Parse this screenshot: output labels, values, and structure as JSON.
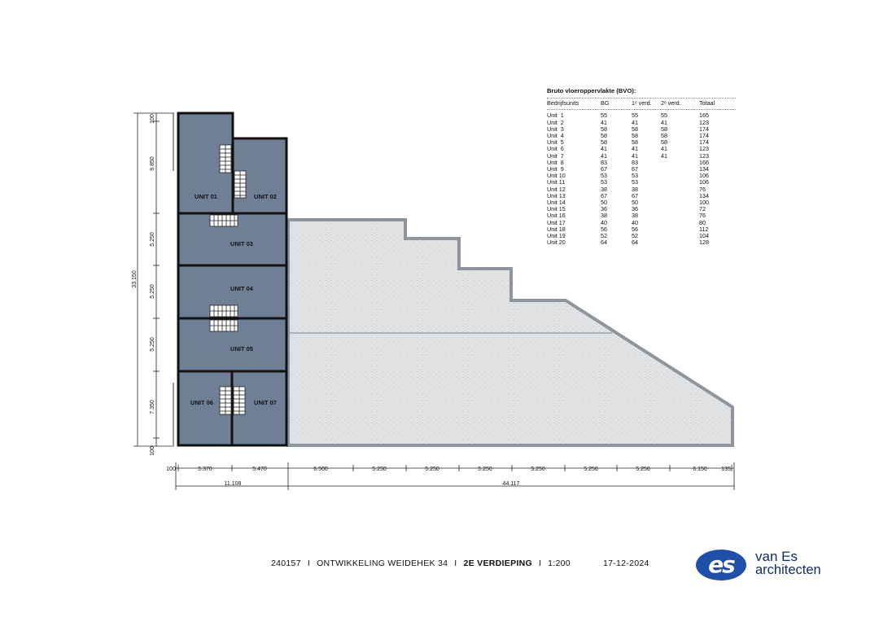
{
  "bvo_table": {
    "title": "Bruto vloeroppervlakte (BVO):",
    "headers": [
      "Bedrijfsunits",
      "BG",
      "1ᵉ verd.",
      "2ᵉ verd.",
      "Totaal"
    ],
    "rows": [
      [
        "Unit  1",
        "55",
        "55",
        "55",
        "165"
      ],
      [
        "Unit  2",
        "41",
        "41",
        "41",
        "123"
      ],
      [
        "Unit  3",
        "58",
        "58",
        "58",
        "174"
      ],
      [
        "Unit  4",
        "58",
        "58",
        "58",
        "174"
      ],
      [
        "Unit  5",
        "58",
        "58",
        "58",
        "174"
      ],
      [
        "Unit  6",
        "41",
        "41",
        "41",
        "123"
      ],
      [
        "Unit  7",
        "41",
        "41",
        "41",
        "123"
      ],
      [
        "Unit  8",
        "83",
        "83",
        "",
        "166"
      ],
      [
        "Unit  9",
        "67",
        "67",
        "",
        "134"
      ],
      [
        "Unit 10",
        "53",
        "53",
        "",
        "106"
      ],
      [
        "Unit 11",
        "53",
        "53",
        "",
        "106"
      ],
      [
        "Unit 12",
        "38",
        "38",
        "",
        "76"
      ],
      [
        "Unit 13",
        "67",
        "67",
        "",
        "134"
      ],
      [
        "Unit 14",
        "50",
        "50",
        "",
        "100"
      ],
      [
        "Unit 15",
        "36",
        "36",
        "",
        "72"
      ],
      [
        "Unit 16",
        "38",
        "38",
        "",
        "76"
      ],
      [
        "Unit 17",
        "40",
        "40",
        "",
        "80"
      ],
      [
        "Unit 18",
        "56",
        "56",
        "",
        "112"
      ],
      [
        "Unit 19",
        "52",
        "52",
        "",
        "104"
      ],
      [
        "Unit 20",
        "64",
        "64",
        "",
        "128"
      ]
    ]
  },
  "units": {
    "u01": "UNIT 01",
    "u02": "UNIT 02",
    "u03": "UNIT 03",
    "u04": "UNIT 04",
    "u05": "UNIT 05",
    "u06": "UNIT 06",
    "u07": "UNIT 07"
  },
  "dimensions": {
    "vertical": {
      "total": "33.150",
      "d100_top": "100",
      "d9850": "9.850",
      "d5250_a": "5.250",
      "d5250_b": "5.250",
      "d5250_c": "5.250",
      "d7350": "7.350",
      "d100_bottom": "100"
    },
    "horizontal": {
      "d100": "100",
      "d5370": "5.370",
      "d5470": "5.470",
      "d6500": "6.500",
      "d5250_1": "5.250",
      "d5250_2": "5.250",
      "d5250_3": "5.250",
      "d5250_4": "5.250",
      "d5250_5": "5.250",
      "d5250_6": "5.250",
      "d6150": "6.150",
      "d135": "135",
      "total_left": "11.108",
      "total_right": "44.117"
    }
  },
  "title_block": {
    "project_number": "240157",
    "project_name": "ONTWIKKELING WEIDEHEK 34",
    "floor": "2E VERDIEPING",
    "scale": "1:200",
    "date": "17-12-2024",
    "separator": "I"
  },
  "logo": {
    "line1": "van Es",
    "line2": "architecten",
    "mark": "es"
  },
  "colors": {
    "unit_fill": "#6e7f96",
    "roof_fill": "#dfe1e3",
    "roof_edge": "#9aa0a6",
    "wall": "#111111",
    "logo_blue": "#1f4fa8"
  }
}
